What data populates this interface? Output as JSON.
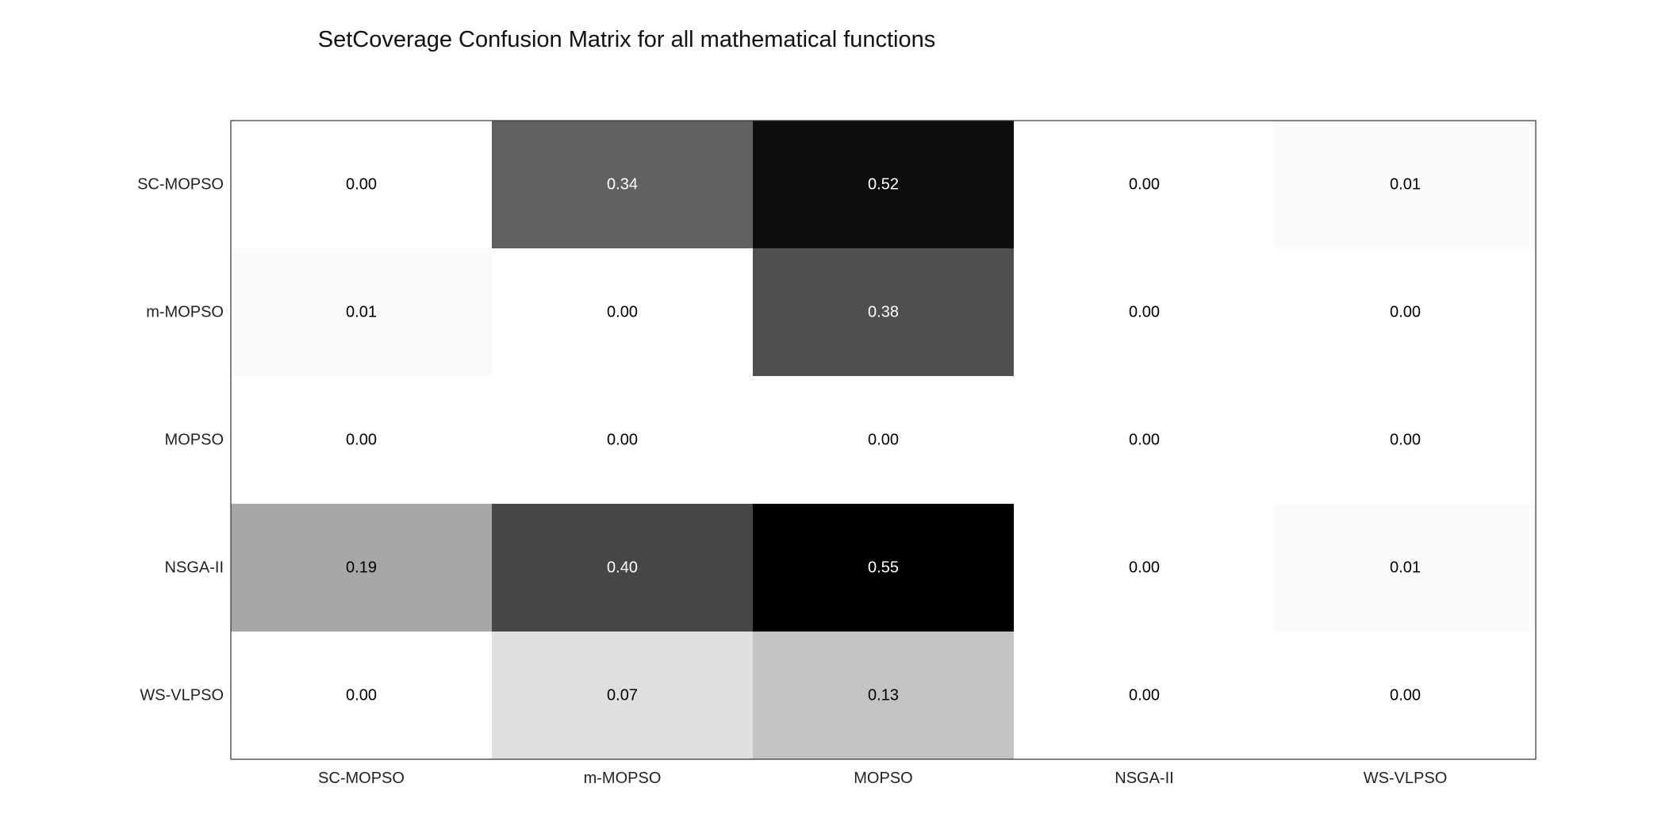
{
  "chart_data": {
    "type": "heatmap",
    "title": "SetCoverage Confusion Matrix for all mathematical functions",
    "xlabel": "",
    "ylabel": "",
    "x_categories": [
      "SC-MOPSO",
      "m-MOPSO",
      "MOPSO",
      "NSGA-II",
      "WS-VLPSO"
    ],
    "y_categories": [
      "SC-MOPSO",
      "m-MOPSO",
      "MOPSO",
      "NSGA-II",
      "WS-VLPSO"
    ],
    "values": [
      [
        0.0,
        0.34,
        0.52,
        0.0,
        0.01
      ],
      [
        0.01,
        0.0,
        0.38,
        0.0,
        0.0
      ],
      [
        0.0,
        0.0,
        0.0,
        0.0,
        0.0
      ],
      [
        0.19,
        0.4,
        0.55,
        0.0,
        0.01
      ],
      [
        0.0,
        0.07,
        0.13,
        0.0,
        0.0
      ]
    ],
    "value_format": "2 decimals",
    "colormap": "white-to-black grayscale",
    "color_range": [
      0,
      0.55
    ],
    "cell_label_colors": {
      "dark": "#ffffff",
      "light": "#000000"
    },
    "grid": false,
    "legend": "none"
  }
}
